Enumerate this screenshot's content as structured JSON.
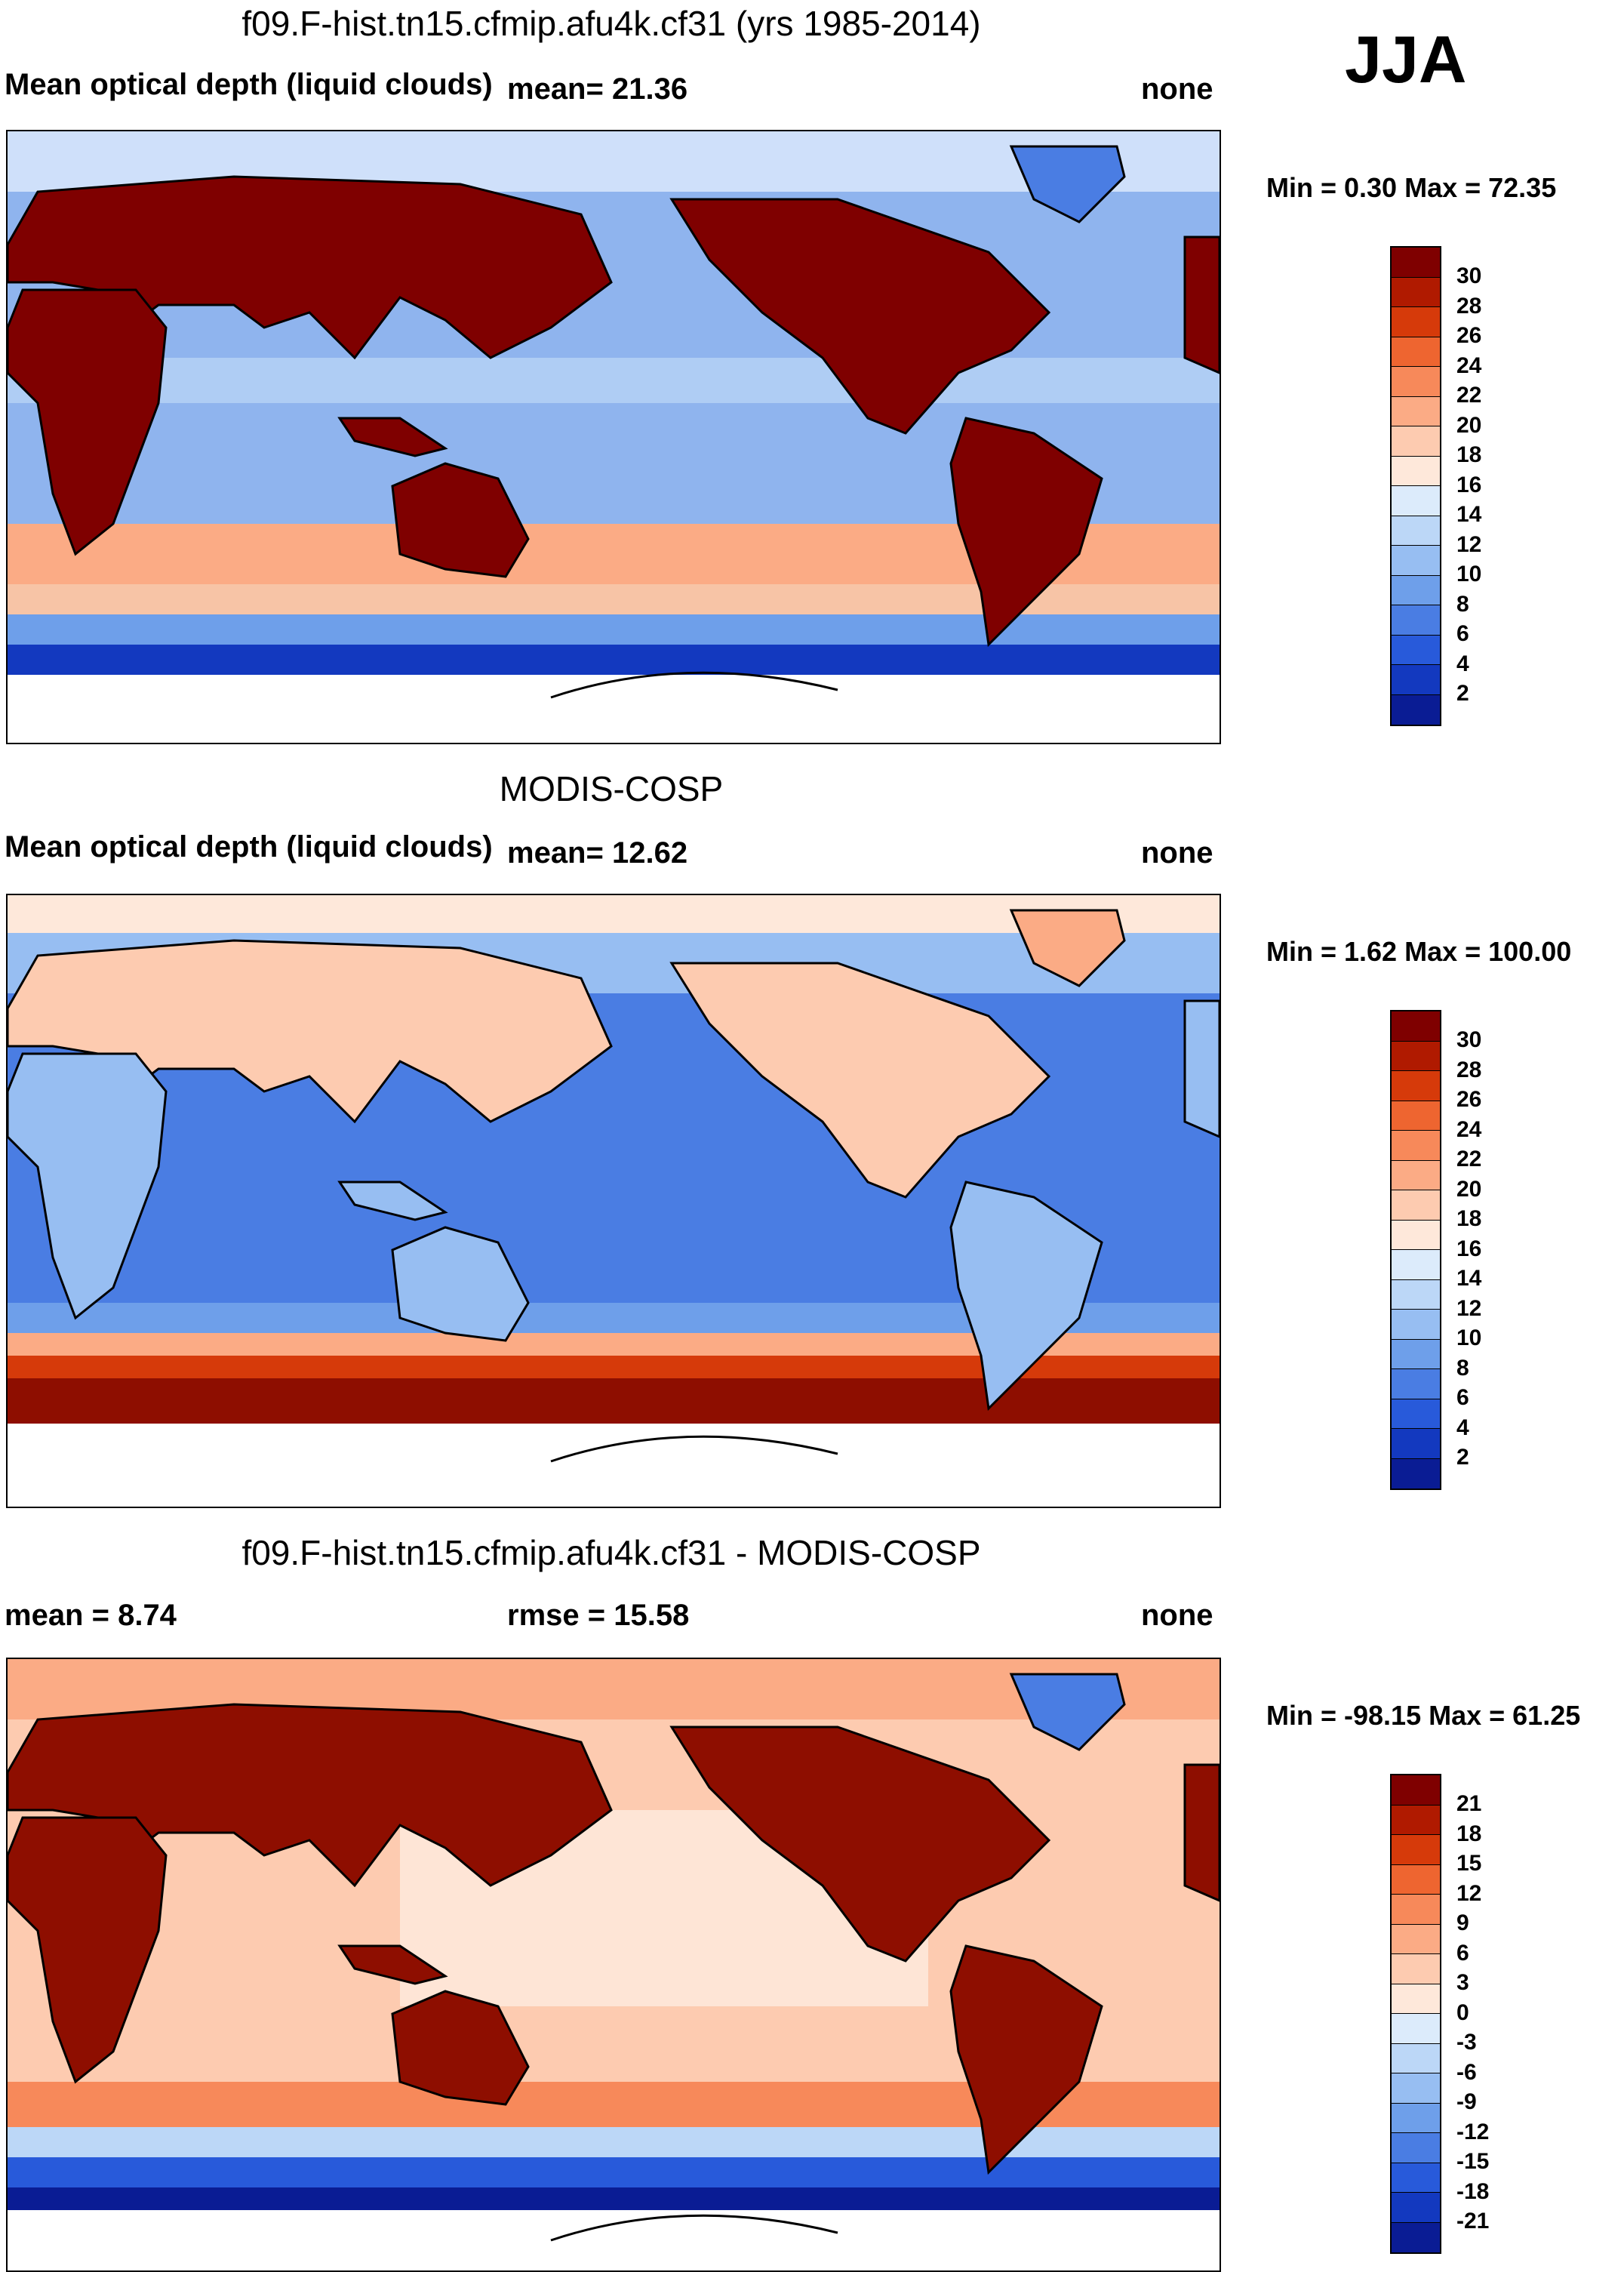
{
  "season": "JJA",
  "panels": [
    {
      "title": "f09.F-hist.tn15.cfmip.afu4k.cf31 (yrs 1985-2014)",
      "left_label": "Mean optical depth (liquid clouds)",
      "center_label": "mean=  21.36",
      "right_label": "none",
      "min_max": "Min =   0.30 Max =  72.35",
      "colorbar_ticks": [
        "30",
        "28",
        "26",
        "24",
        "22",
        "20",
        "18",
        "16",
        "14",
        "12",
        "10",
        "8",
        "6",
        "4",
        "2"
      ]
    },
    {
      "title": "MODIS-COSP",
      "left_label": "Mean optical depth (liquid clouds)",
      "center_label": "mean=  12.62",
      "right_label": "none",
      "min_max": "Min =   1.62 Max = 100.00",
      "colorbar_ticks": [
        "30",
        "28",
        "26",
        "24",
        "22",
        "20",
        "18",
        "16",
        "14",
        "12",
        "10",
        "8",
        "6",
        "4",
        "2"
      ]
    },
    {
      "title": "f09.F-hist.tn15.cfmip.afu4k.cf31 - MODIS-COSP",
      "left_label": "mean =   8.74",
      "center_label": "rmse =  15.58",
      "right_label": "none",
      "min_max": "Min = -98.15 Max =  61.25",
      "colorbar_ticks": [
        "21",
        "18",
        "15",
        "12",
        "9",
        "6",
        "3",
        "0",
        "-3",
        "-6",
        "-9",
        "-12",
        "-15",
        "-18",
        "-21"
      ]
    }
  ],
  "colors": {
    "colormap": [
      "#7f0000",
      "#b01a00",
      "#d63a0a",
      "#ee6530",
      "#f7895a",
      "#fbab85",
      "#fdcbb0",
      "#fee8da",
      "#dcebfb",
      "#bcd7f7",
      "#97bef2",
      "#6e9fea",
      "#4a7de3",
      "#285ada",
      "#1339bf",
      "#0a1c94"
    ],
    "land_high": "#8e0e00",
    "ocean_blue": "#8fb4ee"
  }
}
